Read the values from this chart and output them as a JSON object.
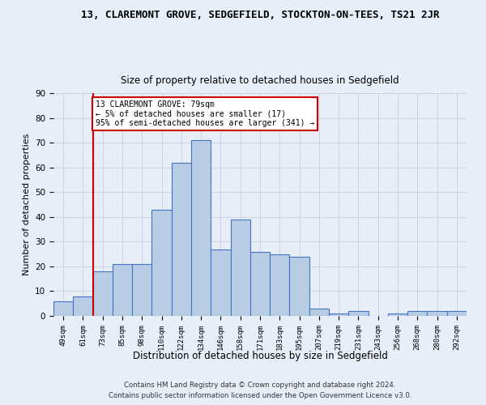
{
  "title": "13, CLAREMONT GROVE, SEDGEFIELD, STOCKTON-ON-TEES, TS21 2JR",
  "subtitle": "Size of property relative to detached houses in Sedgefield",
  "xlabel": "Distribution of detached houses by size in Sedgefield",
  "ylabel": "Number of detached properties",
  "footnote1": "Contains HM Land Registry data © Crown copyright and database right 2024.",
  "footnote2": "Contains public sector information licensed under the Open Government Licence v3.0.",
  "bin_labels": [
    "49sqm",
    "61sqm",
    "73sqm",
    "85sqm",
    "98sqm",
    "110sqm",
    "122sqm",
    "134sqm",
    "146sqm",
    "158sqm",
    "171sqm",
    "183sqm",
    "195sqm",
    "207sqm",
    "219sqm",
    "231sqm",
    "243sqm",
    "256sqm",
    "268sqm",
    "280sqm",
    "292sqm"
  ],
  "bar_values": [
    6,
    8,
    18,
    21,
    21,
    43,
    62,
    71,
    27,
    39,
    26,
    25,
    24,
    3,
    1,
    2,
    0,
    1,
    2,
    2,
    2
  ],
  "bar_color": "#b8cce4",
  "bar_edge_color": "#4472c4",
  "vline_x_index": 2,
  "vline_color": "#cc0000",
  "annotation_text": "13 CLAREMONT GROVE: 79sqm\n← 5% of detached houses are smaller (17)\n95% of semi-detached houses are larger (341) →",
  "annotation_box_color": "#cc0000",
  "ylim": [
    0,
    90
  ],
  "yticks": [
    0,
    10,
    20,
    30,
    40,
    50,
    60,
    70,
    80,
    90
  ],
  "background_color": "#e8eef8",
  "grid_color": "#c8d0e0"
}
